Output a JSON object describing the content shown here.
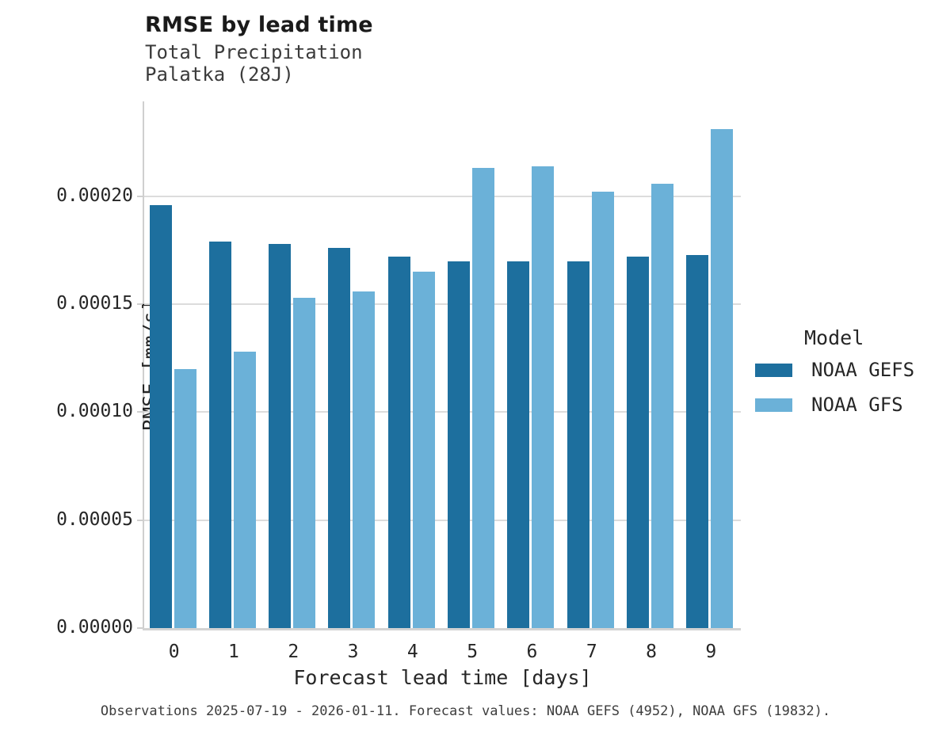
{
  "header": {
    "title": "RMSE by lead time",
    "subtitle1": "Total Precipitation",
    "subtitle2": "Palatka (28J)"
  },
  "legend": {
    "title": "Model"
  },
  "caption": "Observations 2025-07-19 - 2026-01-11. Forecast values: NOAA GEFS (4952), NOAA GFS (19832).",
  "colors": {
    "gefs_dark_blue": "#1d6f9e",
    "gfs_light_blue": "#6bb1d8",
    "gridline_gray": "#dcdcdc",
    "axis_gray": "#cfcfcf",
    "text_dark": "#262626"
  },
  "chart_data": {
    "type": "bar",
    "title": "RMSE by lead time",
    "subtitle": [
      "Total Precipitation",
      "Palatka (28J)"
    ],
    "xlabel": "Forecast lead time [days]",
    "ylabel": "RMSE [mm/s]",
    "categories": [
      "0",
      "1",
      "2",
      "3",
      "4",
      "5",
      "6",
      "7",
      "8",
      "9"
    ],
    "series": [
      {
        "name": "NOAA GEFS",
        "color": "#1d6f9e",
        "values": [
          0.000196,
          0.000179,
          0.000178,
          0.000176,
          0.000172,
          0.00017,
          0.00017,
          0.00017,
          0.000172,
          0.000173
        ]
      },
      {
        "name": "NOAA GFS",
        "color": "#6bb1d8",
        "values": [
          0.00012,
          0.000128,
          0.000153,
          0.000156,
          0.000165,
          0.000213,
          0.000214,
          0.000202,
          0.000206,
          0.000231
        ]
      }
    ],
    "ylim": [
      0,
      0.000244
    ],
    "yticks": [
      0.0,
      5e-05,
      0.0001,
      0.00015,
      0.0002
    ],
    "ytick_labels": [
      "0.00000",
      "0.00005",
      "0.00010",
      "0.00015",
      "0.00020"
    ],
    "grid": true,
    "legend_title": "Model",
    "legend_position": "right"
  }
}
